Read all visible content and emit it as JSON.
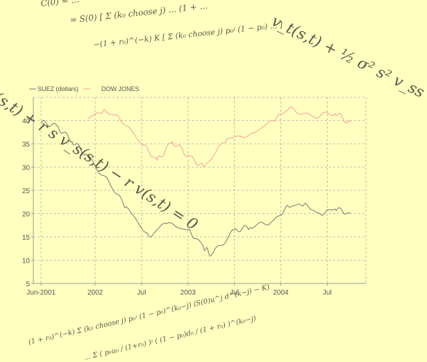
{
  "formulas": {
    "top_line1": "C(0) = ...",
    "top_line2": "= S(0) [ Σ (k₀ choose j) ... (1 + ...",
    "top_line3": "−(1 + r₀)^(−k) K [ Σ (k₀ choose j) p₀ʲ (1 − p₀) ... ]",
    "right_pde": "v_t(s,t) + ½ σ² s² v_ss",
    "left_pde": "(s,t) + r s v_s(s,t) − r v(s,t) = 0",
    "bottom_line1": "(1 + r₀)^(−k) Σ (k₀ choose j) p₀ʲ (1 − p₀)^(k₀−j) (S(0)u^j d^(k−j) − K)",
    "bottom_line2": "... Σ ( p₀u₀ / (1+r₀) )ʲ ( (1 − p₀)d₀ / (1 + r₀) )^(k₀−j)"
  },
  "chart_data": {
    "type": "line",
    "legend": [
      "SUEZ (dollars)",
      "DOW JONES"
    ],
    "series": [
      {
        "name": "SUEZ (dollars)",
        "color": "#777777",
        "x": [
          "2001-06",
          "2001-08",
          "2001-10",
          "2001-12",
          "2002-03",
          "2002-05",
          "2002-08",
          "2002-10",
          "2003-01",
          "2003-03",
          "2003-04",
          "2003-07",
          "2003-09",
          "2003-12",
          "2004-02",
          "2004-04",
          "2004-06",
          "2004-08",
          "2004-10"
        ],
        "values": [
          39.5,
          39.0,
          35.5,
          32.5,
          26.0,
          21.5,
          15.0,
          18.0,
          16.5,
          13.0,
          11.0,
          16.5,
          17.0,
          18.5,
          21.5,
          22.0,
          20.0,
          21.0,
          20.0
        ]
      },
      {
        "name": "DOW JONES",
        "color": "#f2a0a0",
        "x": [
          "2001-12",
          "2002-02",
          "2002-04",
          "2002-07",
          "2002-09",
          "2002-11",
          "2003-01",
          "2003-03",
          "2003-06",
          "2003-09",
          "2003-12",
          "2004-02",
          "2004-05",
          "2004-08",
          "2004-10"
        ],
        "values": [
          40.5,
          42.0,
          41.0,
          35.0,
          31.5,
          35.5,
          32.5,
          30.0,
          36.0,
          37.0,
          40.0,
          42.5,
          41.0,
          41.5,
          39.5
        ]
      }
    ],
    "x_tick_labels": [
      "Jun-2001",
      "2002",
      "Jul",
      "2003",
      "Jul",
      "2004",
      "Jul"
    ],
    "y_ticks": [
      5,
      10,
      15,
      20,
      25,
      30,
      35,
      40
    ],
    "ylim": [
      5,
      45
    ],
    "xlim": [
      "2001-05",
      "2004-12"
    ],
    "grid": true,
    "legend_position": "top-left"
  }
}
